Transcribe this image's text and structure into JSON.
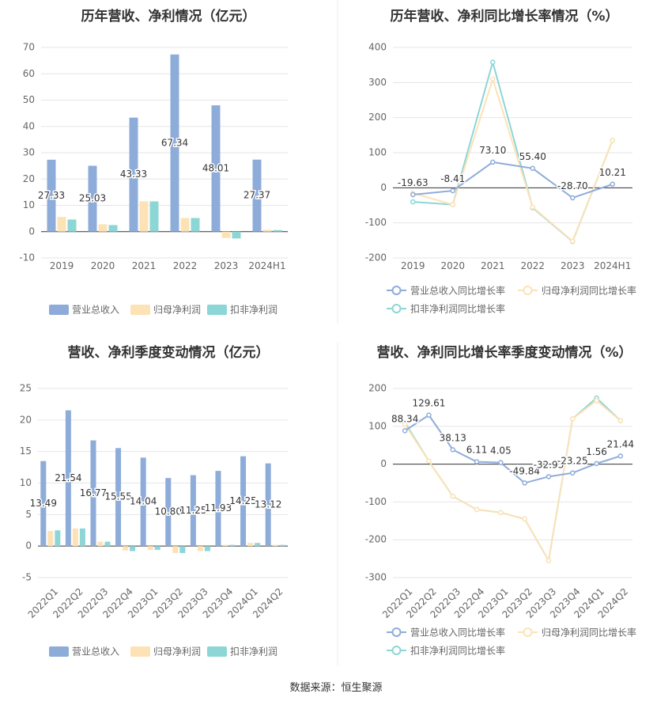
{
  "colors": {
    "revenue": "#8eacd9",
    "net_profit": "#fde2b6",
    "deducted_profit": "#8dd6d6",
    "axis_text": "#666666",
    "grid": "#e6e6e6",
    "divider": "#eeeeee"
  },
  "source": "数据来源：恒生聚源",
  "chart_data": [
    {
      "id": "annual-amounts",
      "type": "bar",
      "title": "历年营收、净利情况（亿元）",
      "categories": [
        "2019",
        "2020",
        "2021",
        "2022",
        "2023",
        "2024H1"
      ],
      "series": [
        {
          "name": "营业总收入",
          "values": [
            27.33,
            25.03,
            43.33,
            67.34,
            48.01,
            27.37
          ],
          "labels": [
            "27.33",
            "25.03",
            "43.33",
            "67.34",
            "48.01",
            "27.37"
          ]
        },
        {
          "name": "归母净利润",
          "values": [
            5.6,
            2.8,
            11.5,
            5.2,
            -2.4,
            0.7
          ]
        },
        {
          "name": "扣非净利润",
          "values": [
            4.6,
            2.5,
            11.5,
            5.2,
            -2.6,
            0.6
          ]
        }
      ],
      "ylim": [
        -10,
        70
      ],
      "yticks": [
        -10,
        0,
        10,
        20,
        30,
        40,
        50,
        60,
        70
      ],
      "legend": "bottom-center"
    },
    {
      "id": "annual-growth",
      "type": "line",
      "title": "历年营收、净利同比增长率情况（%）",
      "categories": [
        "2019",
        "2020",
        "2021",
        "2022",
        "2023",
        "2024H1"
      ],
      "series": [
        {
          "name": "营业总收入同比增长率",
          "values": [
            -19.63,
            -8.41,
            73.1,
            55.4,
            -28.7,
            10.21
          ],
          "labels": [
            "-19.63",
            "-8.41",
            "73.10",
            "55.40",
            "-28.70",
            "10.21"
          ]
        },
        {
          "name": "归母净利润同比增长率",
          "values": [
            -15,
            -48,
            310,
            -55,
            -152,
            135
          ]
        },
        {
          "name": "扣非净利润同比增长率",
          "values": [
            -40,
            -48,
            358,
            -57,
            -153,
            135
          ]
        }
      ],
      "ylim": [
        -200,
        400
      ],
      "yticks": [
        -200,
        -100,
        0,
        100,
        200,
        300,
        400
      ],
      "legend": "bottom"
    },
    {
      "id": "quarterly-amounts",
      "type": "bar",
      "title": "营收、净利季度变动情况（亿元）",
      "categories": [
        "2022Q1",
        "2022Q2",
        "2022Q3",
        "2022Q4",
        "2023Q1",
        "2023Q2",
        "2023Q3",
        "2023Q4",
        "2024Q1",
        "2024Q2"
      ],
      "series": [
        {
          "name": "营业总收入",
          "values": [
            13.49,
            21.54,
            16.77,
            15.55,
            14.04,
            10.8,
            11.25,
            11.93,
            14.25,
            13.12
          ],
          "labels": [
            "13.49",
            "21.54",
            "16.77",
            "15.55",
            "14.04",
            "10.80",
            "11.25",
            "11.93",
            "14.25",
            "13.12"
          ]
        },
        {
          "name": "归母净利润",
          "values": [
            2.4,
            2.8,
            0.7,
            -0.7,
            -0.6,
            -1.1,
            -0.8,
            0.2,
            0.5,
            0.2
          ]
        },
        {
          "name": "扣非净利润",
          "values": [
            2.5,
            2.8,
            0.7,
            -0.8,
            -0.6,
            -1.1,
            -0.8,
            0.2,
            0.5,
            0.2
          ]
        }
      ],
      "ylim": [
        -5,
        25
      ],
      "yticks": [
        -5,
        0,
        5,
        10,
        15,
        20,
        25
      ],
      "legend": "bottom-center"
    },
    {
      "id": "quarterly-growth",
      "type": "line",
      "title": "营收、净利同比增长率季度变动情况（%）",
      "categories": [
        "2022Q1",
        "2022Q2",
        "2022Q3",
        "2022Q4",
        "2023Q1",
        "2023Q2",
        "2023Q3",
        "2023Q4",
        "2024Q1",
        "2024Q2"
      ],
      "series": [
        {
          "name": "营业总收入同比增长率",
          "values": [
            88.34,
            129.61,
            38.13,
            6.11,
            4.05,
            -49.84,
            -32.93,
            -23.25,
            1.56,
            21.44
          ],
          "labels": [
            "88.34",
            "129.61",
            "38.13",
            "6.11",
            "4.05",
            "-49.84",
            "-32.93",
            "-23.25",
            "1.56",
            "21.44"
          ]
        },
        {
          "name": "归母净利润同比增长率",
          "values": [
            105,
            8,
            -85,
            -120,
            -128,
            -145,
            -255,
            120,
            168,
            115
          ]
        },
        {
          "name": "扣非净利润同比增长率",
          "values": [
            110,
            8,
            -85,
            -120,
            -128,
            -145,
            -255,
            120,
            175,
            115
          ]
        }
      ],
      "ylim": [
        -300,
        200
      ],
      "yticks": [
        -300,
        -200,
        -100,
        0,
        100,
        200
      ],
      "legend": "bottom"
    }
  ]
}
